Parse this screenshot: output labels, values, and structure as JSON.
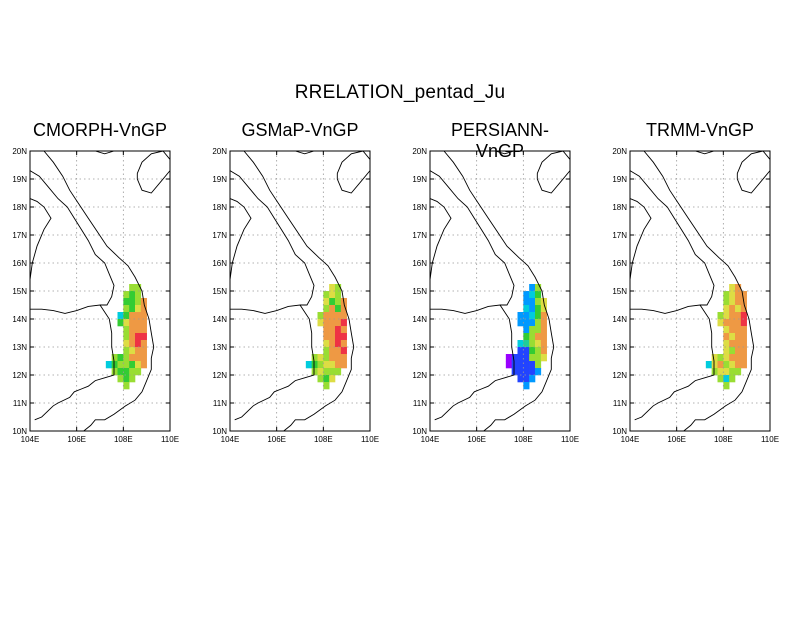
{
  "figure": {
    "title": "RRELATION_pentad_Ju"
  },
  "axes": {
    "lat_labels": [
      "20N",
      "19N",
      "18N",
      "17N",
      "16N",
      "15N",
      "14N",
      "13N",
      "12N",
      "11N",
      "10N"
    ],
    "lon_labels": [
      "104E",
      "106E",
      "108E",
      "110E"
    ]
  },
  "colors": {
    "magenta": "#9900ff",
    "blue": "#2244ff",
    "sky": "#0099ff",
    "cyan": "#00ccdd",
    "teal": "#22cc99",
    "green": "#33cc33",
    "lime": "#99dd33",
    "yellow": "#dddd44",
    "orange": "#ee9944",
    "red": "#ee3344"
  },
  "panels": [
    {
      "title": "CMORPH-VnGP",
      "grid": [
        ".......LL.",
        "......LGL.",
        "......GGLO",
        "......LGYO",
        ".....CGOOO",
        ".....GYOOO",
        "......LOOO",
        "......LORR",
        "......YORO",
        "......LYOO",
        "....LGLOOO",
        "...CGLLGYO",
        "....LGGLL.",
        ".....LGL..",
        "......L..."
      ]
    },
    {
      "title": "GSMaP-VnGP",
      "grid": [
        ".......YL.",
        "......LYL.",
        "......YGLO",
        "......LOGO",
        ".....LOOOO",
        ".....YOOOR",
        "......OORO",
        "......OORR",
        "......YORO",
        "......LOOR",
        "....LYLOOO",
        "...CGLYYOO",
        "....LYLLL.",
        ".....LGY..",
        "......L..."
      ]
    },
    {
      "title": "PERSIANN-VnGP",
      "grid": [
        ".......SL.",
        "......SCG.",
        "......SSLY",
        "......CSGY",
        ".....SSCGO",
        ".....SSSLO",
        "......SLLO",
        "......GLOO",
        ".....CTLYO",
        ".....BBGLO",
        "...MBBBLLY",
        "...MBBBBL.",
        "....BBBBS.",
        ".....BBS..",
        "......S..."
      ]
    },
    {
      "title": "TRMM-VnGP",
      "grid": [
        ".......YO.",
        "......LYOO",
        "......LYOO",
        "......YOYO",
        ".....LYOOR",
        ".....YOOOR",
        "......YOOO",
        "......OYOO",
        "......YOOO",
        "......YLOO",
        "....YLYOOO",
        "...CYOLYOO",
        "....LYYLL.",
        ".....LCL..",
        "......L..."
      ]
    }
  ]
}
